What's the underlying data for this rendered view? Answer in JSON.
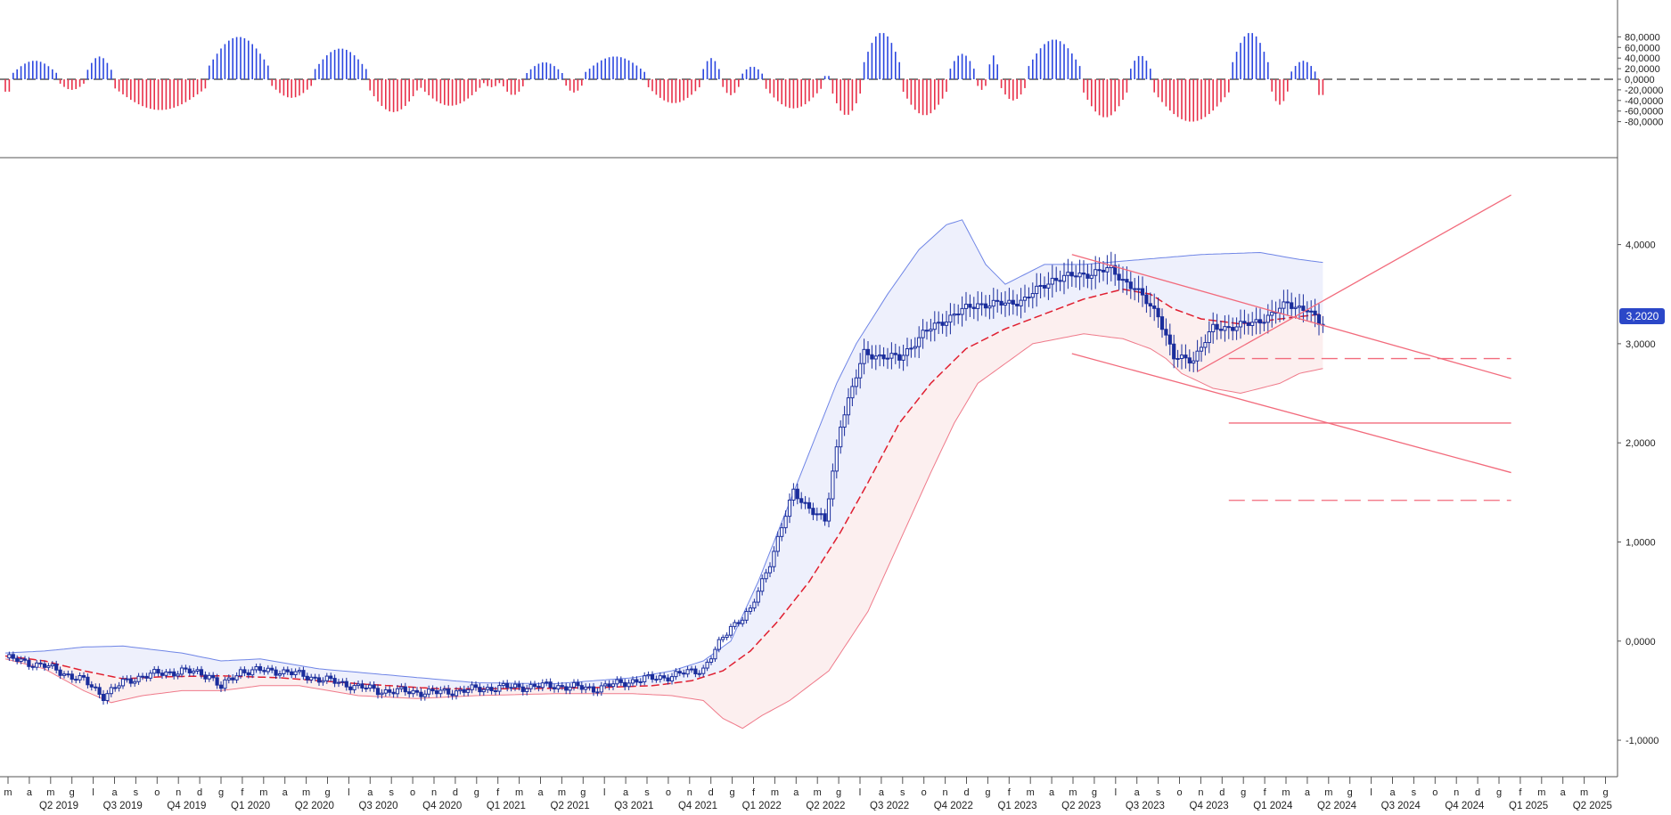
{
  "chart_data": [
    {
      "type": "bar",
      "panel": "oscillator",
      "ylim": [
        -90000,
        90000
      ],
      "y_ticks": [
        80000,
        60000,
        40000,
        20000,
        0,
        -20000,
        -40000,
        -60000,
        -80000
      ],
      "y_tick_labels": [
        "80,0000",
        "60,0000",
        "40,0000",
        "20,0000",
        "0,0000",
        "-20,0000",
        "-40,0000",
        "-60,0000",
        "-80,0000"
      ],
      "colors": {
        "positive": "#2b47e0",
        "negative": "#e8304a",
        "zero_line": "#000000"
      },
      "segments": [
        {
          "t0": 0,
          "t1": 2,
          "peak": -30000
        },
        {
          "t0": 2,
          "t1": 14,
          "peak": 35000
        },
        {
          "t0": 14,
          "t1": 21,
          "peak": -20000
        },
        {
          "t0": 21,
          "t1": 28,
          "peak": 43000
        },
        {
          "t0": 28,
          "t1": 52,
          "peak": -58000
        },
        {
          "t0": 52,
          "t1": 68,
          "peak": 80000
        },
        {
          "t0": 68,
          "t1": 79,
          "peak": -35000
        },
        {
          "t0": 79,
          "t1": 93,
          "peak": 58000
        },
        {
          "t0": 93,
          "t1": 106,
          "peak": -62000
        },
        {
          "t0": 106,
          "t1": 122,
          "peak": -50000
        },
        {
          "t0": 122,
          "t1": 127,
          "peak": -15000
        },
        {
          "t0": 127,
          "t1": 133,
          "peak": -30000
        },
        {
          "t0": 133,
          "t1": 143,
          "peak": 32000
        },
        {
          "t0": 143,
          "t1": 148,
          "peak": -25000
        },
        {
          "t0": 148,
          "t1": 164,
          "peak": 43000
        },
        {
          "t0": 164,
          "t1": 178,
          "peak": -45000
        },
        {
          "t0": 178,
          "t1": 183,
          "peak": 40000
        },
        {
          "t0": 183,
          "t1": 188,
          "peak": -30000
        },
        {
          "t0": 188,
          "t1": 194,
          "peak": 24000
        },
        {
          "t0": 194,
          "t1": 209,
          "peak": -55000
        },
        {
          "t0": 209,
          "t1": 211,
          "peak": 8000
        },
        {
          "t0": 211,
          "t1": 219,
          "peak": -68000
        },
        {
          "t0": 219,
          "t1": 229,
          "peak": 88000
        },
        {
          "t0": 229,
          "t1": 241,
          "peak": -68000
        },
        {
          "t0": 241,
          "t1": 248,
          "peak": 48000
        },
        {
          "t0": 248,
          "t1": 251,
          "peak": -20000
        },
        {
          "t0": 251,
          "t1": 254,
          "peak": 45000
        },
        {
          "t0": 254,
          "t1": 261,
          "peak": -40000
        },
        {
          "t0": 261,
          "t1": 275,
          "peak": 75000
        },
        {
          "t0": 275,
          "t1": 287,
          "peak": -72000
        },
        {
          "t0": 287,
          "t1": 293,
          "peak": 45000
        },
        {
          "t0": 293,
          "t1": 313,
          "peak": -80000
        },
        {
          "t0": 313,
          "t1": 323,
          "peak": 88000
        },
        {
          "t0": 323,
          "t1": 328,
          "peak": -48000
        },
        {
          "t0": 328,
          "t1": 335,
          "peak": 35000
        },
        {
          "t0": 335,
          "t1": 337,
          "peak": -38000
        }
      ]
    },
    {
      "type": "candlestick",
      "panel": "price",
      "ylim": [
        -1.35,
        4.85
      ],
      "y_ticks": [
        4,
        3,
        2,
        1,
        0,
        -1
      ],
      "y_tick_labels": [
        "4,0000",
        "3,0000",
        "2,0000",
        "1,0000",
        "0,0000",
        "-1,0000"
      ],
      "last_price_label": "3,2020",
      "last_price": 3.202,
      "n_bars": 337,
      "colors": {
        "candle": "#1a2d9c",
        "upper_band_line": "#6f85e6",
        "upper_fill": "#eef0fc",
        "lower_band_line": "#ef7a8a",
        "lower_fill": "#fcefef",
        "midline": "#e01f30",
        "trendline": "#f26b7c"
      },
      "price_path": [
        [
          0,
          -0.17
        ],
        [
          10,
          -0.25
        ],
        [
          20,
          -0.4
        ],
        [
          25,
          -0.55
        ],
        [
          30,
          -0.42
        ],
        [
          35,
          -0.35
        ],
        [
          45,
          -0.3
        ],
        [
          52,
          -0.34
        ],
        [
          55,
          -0.47
        ],
        [
          60,
          -0.3
        ],
        [
          70,
          -0.3
        ],
        [
          80,
          -0.38
        ],
        [
          95,
          -0.5
        ],
        [
          110,
          -0.52
        ],
        [
          125,
          -0.47
        ],
        [
          140,
          -0.45
        ],
        [
          150,
          -0.48
        ],
        [
          160,
          -0.4
        ],
        [
          170,
          -0.35
        ],
        [
          178,
          -0.28
        ],
        [
          185,
          0.15
        ],
        [
          190,
          0.3
        ],
        [
          195,
          0.8
        ],
        [
          201,
          1.5
        ],
        [
          209,
          1.2
        ],
        [
          213,
          2.2
        ],
        [
          219,
          2.9
        ],
        [
          228,
          2.85
        ],
        [
          234,
          3.1
        ],
        [
          242,
          3.3
        ],
        [
          248,
          3.4
        ],
        [
          255,
          3.4
        ],
        [
          260,
          3.45
        ],
        [
          267,
          3.65
        ],
        [
          275,
          3.7
        ],
        [
          282,
          3.75
        ],
        [
          288,
          3.55
        ],
        [
          294,
          3.3
        ],
        [
          298,
          2.85
        ],
        [
          303,
          2.85
        ],
        [
          308,
          3.15
        ],
        [
          318,
          3.2
        ],
        [
          323,
          3.3
        ],
        [
          327,
          3.4
        ],
        [
          332,
          3.35
        ],
        [
          335,
          3.2
        ]
      ],
      "upper_band": [
        [
          0,
          -0.12
        ],
        [
          10,
          -0.1
        ],
        [
          20,
          -0.06
        ],
        [
          30,
          -0.05
        ],
        [
          45,
          -0.12
        ],
        [
          55,
          -0.2
        ],
        [
          65,
          -0.18
        ],
        [
          80,
          -0.28
        ],
        [
          100,
          -0.35
        ],
        [
          120,
          -0.42
        ],
        [
          140,
          -0.43
        ],
        [
          160,
          -0.37
        ],
        [
          170,
          -0.3
        ],
        [
          178,
          -0.2
        ],
        [
          185,
          0.0
        ],
        [
          192,
          0.6
        ],
        [
          198,
          1.2
        ],
        [
          205,
          1.9
        ],
        [
          212,
          2.6
        ],
        [
          217,
          3.0
        ],
        [
          225,
          3.5
        ],
        [
          233,
          3.95
        ],
        [
          240,
          4.2
        ],
        [
          244,
          4.25
        ],
        [
          250,
          3.8
        ],
        [
          255,
          3.6
        ],
        [
          265,
          3.8
        ],
        [
          275,
          3.8
        ],
        [
          290,
          3.85
        ],
        [
          305,
          3.9
        ],
        [
          320,
          3.92
        ],
        [
          330,
          3.85
        ],
        [
          336,
          3.82
        ]
      ],
      "lower_band": [
        [
          0,
          -0.18
        ],
        [
          10,
          -0.28
        ],
        [
          20,
          -0.5
        ],
        [
          27,
          -0.62
        ],
        [
          35,
          -0.55
        ],
        [
          45,
          -0.5
        ],
        [
          55,
          -0.5
        ],
        [
          65,
          -0.45
        ],
        [
          75,
          -0.45
        ],
        [
          90,
          -0.55
        ],
        [
          105,
          -0.58
        ],
        [
          120,
          -0.55
        ],
        [
          140,
          -0.53
        ],
        [
          160,
          -0.53
        ],
        [
          170,
          -0.55
        ],
        [
          178,
          -0.6
        ],
        [
          183,
          -0.78
        ],
        [
          188,
          -0.88
        ],
        [
          193,
          -0.75
        ],
        [
          200,
          -0.6
        ],
        [
          210,
          -0.3
        ],
        [
          220,
          0.3
        ],
        [
          228,
          1.0
        ],
        [
          236,
          1.7
        ],
        [
          242,
          2.2
        ],
        [
          248,
          2.6
        ],
        [
          255,
          2.8
        ],
        [
          262,
          3.0
        ],
        [
          275,
          3.1
        ],
        [
          285,
          3.05
        ],
        [
          292,
          2.95
        ],
        [
          296,
          2.85
        ],
        [
          300,
          2.7
        ],
        [
          308,
          2.55
        ],
        [
          315,
          2.5
        ],
        [
          325,
          2.6
        ],
        [
          330,
          2.7
        ],
        [
          336,
          2.75
        ]
      ],
      "midline": [
        [
          0,
          -0.15
        ],
        [
          10,
          -0.2
        ],
        [
          20,
          -0.3
        ],
        [
          30,
          -0.38
        ],
        [
          40,
          -0.36
        ],
        [
          55,
          -0.35
        ],
        [
          70,
          -0.37
        ],
        [
          90,
          -0.43
        ],
        [
          110,
          -0.48
        ],
        [
          130,
          -0.48
        ],
        [
          150,
          -0.47
        ],
        [
          165,
          -0.45
        ],
        [
          175,
          -0.4
        ],
        [
          183,
          -0.3
        ],
        [
          190,
          -0.1
        ],
        [
          197,
          0.2
        ],
        [
          205,
          0.6
        ],
        [
          213,
          1.1
        ],
        [
          220,
          1.6
        ],
        [
          228,
          2.2
        ],
        [
          236,
          2.6
        ],
        [
          245,
          2.95
        ],
        [
          255,
          3.15
        ],
        [
          265,
          3.3
        ],
        [
          275,
          3.45
        ],
        [
          285,
          3.55
        ],
        [
          292,
          3.5
        ],
        [
          298,
          3.35
        ],
        [
          305,
          3.25
        ],
        [
          315,
          3.2
        ],
        [
          325,
          3.25
        ],
        [
          336,
          3.3
        ]
      ],
      "trendlines": [
        {
          "from": [
            304,
            2.72
          ],
          "to": [
            384,
            4.5
          ],
          "style": "solid"
        },
        {
          "from": [
            272,
            3.9
          ],
          "to": [
            384,
            2.65
          ],
          "style": "solid"
        },
        {
          "from": [
            272,
            2.9
          ],
          "to": [
            384,
            1.7
          ],
          "style": "solid"
        },
        {
          "from": [
            312,
            2.2
          ],
          "to": [
            384,
            2.2
          ],
          "style": "solid"
        },
        {
          "from": [
            312,
            2.85
          ],
          "to": [
            384,
            2.85
          ],
          "style": "dashed"
        },
        {
          "from": [
            312,
            1.42
          ],
          "to": [
            384,
            1.42
          ],
          "style": "dashed"
        }
      ]
    }
  ],
  "x_axis": {
    "month_labels": [
      "m",
      "a",
      "m",
      "g",
      "l",
      "a",
      "s",
      "o",
      "n",
      "d",
      "g",
      "f",
      "m",
      "a",
      "m",
      "g",
      "l",
      "a",
      "s",
      "o",
      "n",
      "d",
      "g",
      "f",
      "m",
      "a",
      "m",
      "g",
      "l",
      "a",
      "s",
      "o",
      "n",
      "d",
      "g",
      "f",
      "m",
      "a",
      "m",
      "g",
      "l",
      "a",
      "s",
      "o",
      "n",
      "d",
      "g",
      "f",
      "m",
      "a",
      "m",
      "g",
      "l",
      "a",
      "s",
      "o",
      "n",
      "d",
      "g",
      "f",
      "m",
      "a",
      "m",
      "g",
      "l",
      "a",
      "s",
      "o",
      "n",
      "d",
      "g",
      "f",
      "m",
      "a",
      "m",
      "g"
    ],
    "quarter_labels": [
      "Q2 2019",
      "Q3 2019",
      "Q4 2019",
      "Q1 2020",
      "Q2 2020",
      "Q3 2020",
      "Q4 2020",
      "Q1 2021",
      "Q2 2021",
      "Q3 2021",
      "Q4 2021",
      "Q1 2022",
      "Q2 2022",
      "Q3 2022",
      "Q4 2022",
      "Q1 2023",
      "Q2 2023",
      "Q3 2023",
      "Q4 2023",
      "Q1 2024",
      "Q2 2024",
      "Q3 2024",
      "Q4 2024",
      "Q1 2025",
      "Q2 2025"
    ]
  }
}
